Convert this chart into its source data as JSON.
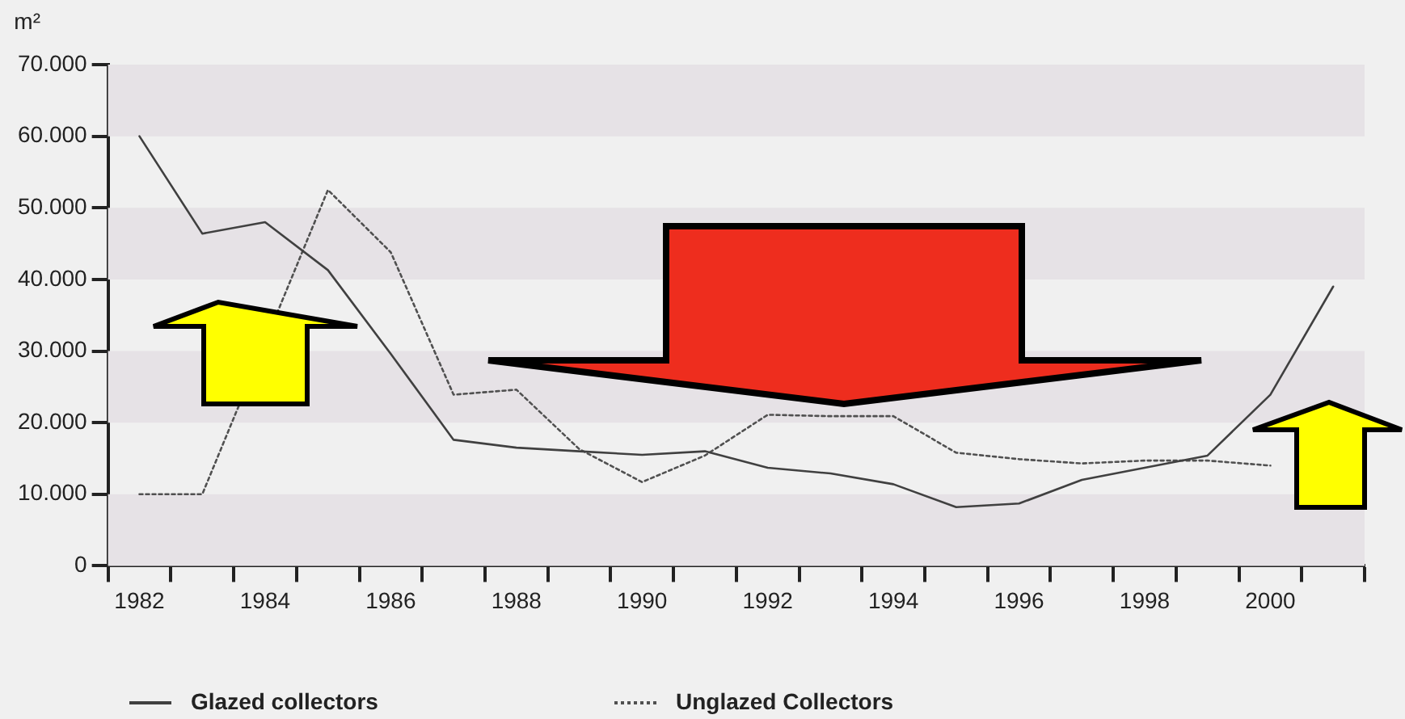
{
  "chart_data": {
    "type": "line",
    "ylabel": "m²",
    "categories": [
      "1982",
      null,
      "1984",
      null,
      "1986",
      null,
      "1988",
      null,
      "1990",
      null,
      "1992",
      null,
      "1994",
      null,
      "1996",
      null,
      "1998",
      null,
      "2000",
      null
    ],
    "series": [
      {
        "name": "Glazed collectors",
        "color": "#404040",
        "line_style": "solid",
        "values": [
          60000,
          46400,
          48000,
          41300,
          29600,
          17600,
          16500,
          16000,
          15500,
          16000,
          13700,
          12900,
          11400,
          8200,
          8700,
          12000,
          13700,
          15400,
          23900,
          39000
        ]
      },
      {
        "name": "Unglazed Collectors",
        "color": "#505050",
        "line_style": "dashed",
        "values": [
          10000,
          10000,
          null,
          52500,
          43800,
          23900,
          24600,
          16300,
          11700,
          15400,
          21100,
          20900,
          20900,
          15800,
          14900,
          14300,
          14700,
          14700,
          14000,
          null
        ]
      }
    ],
    "ylim": [
      0,
      70000
    ],
    "yticks": [
      {
        "value": 0,
        "label": "0"
      },
      {
        "value": 10000,
        "label": "10.000"
      },
      {
        "value": 20000,
        "label": "20.000"
      },
      {
        "value": 30000,
        "label": "30.000"
      },
      {
        "value": 40000,
        "label": "40.000"
      },
      {
        "value": 50000,
        "label": "50.000"
      },
      {
        "value": 60000,
        "label": "60.000"
      },
      {
        "value": 70000,
        "label": "70.000"
      }
    ],
    "grid": false,
    "legend": "bottom",
    "marker": "none"
  }
}
